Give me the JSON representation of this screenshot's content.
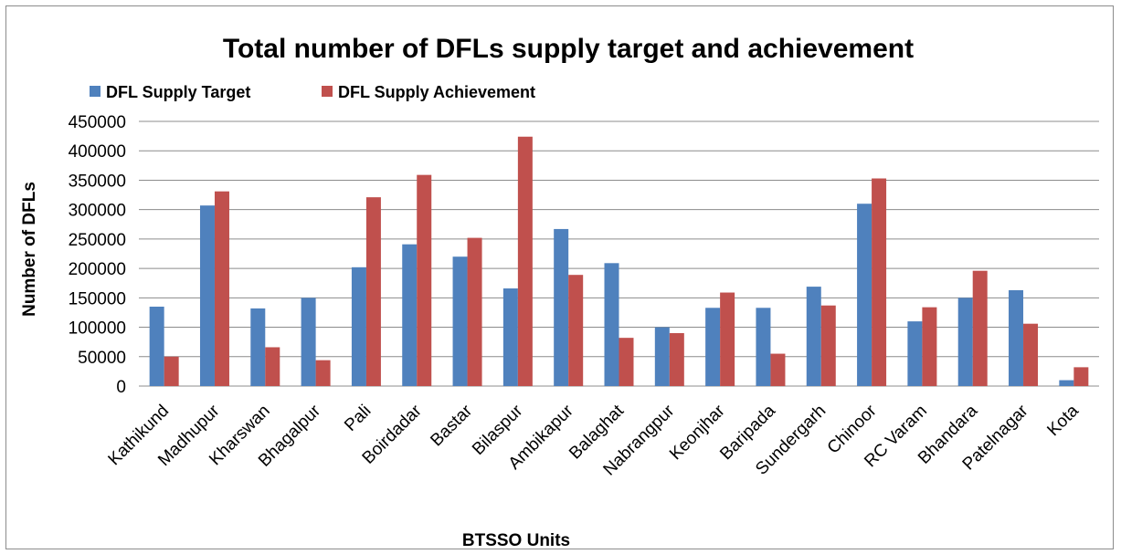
{
  "chart_data": {
    "type": "bar",
    "title": "Total number of DFLs supply target and achievement",
    "xlabel": "BTSSO Units",
    "ylabel": "Number of DFLs",
    "ylim": [
      0,
      450000
    ],
    "yticks": [
      0,
      50000,
      100000,
      150000,
      200000,
      250000,
      300000,
      350000,
      400000,
      450000
    ],
    "grid": true,
    "legend_position": "top-left",
    "categories": [
      "Kathikund",
      "Madhupur",
      "Kharswan",
      "Bhagalpur",
      "Pali",
      "Boirdadar",
      "Bastar",
      "Bilaspur",
      "Ambikapur",
      "Balaghat",
      "Nabrangpur",
      "Keonjhar",
      "Baripada",
      "Sundergarh",
      "Chinoor",
      "RC Varam",
      "Bhandara",
      "Patelnagar",
      "Kota"
    ],
    "series": [
      {
        "name": "DFL Supply Target",
        "color": "#4f81bd",
        "values": [
          135000,
          307000,
          132000,
          150000,
          202000,
          241000,
          220000,
          166000,
          267000,
          209000,
          100000,
          133000,
          133000,
          169000,
          310000,
          110000,
          150000,
          163000,
          10000
        ]
      },
      {
        "name": "DFL Supply Achievement",
        "color": "#c0504d",
        "values": [
          50000,
          331000,
          66000,
          44000,
          321000,
          359000,
          252000,
          424000,
          189000,
          82000,
          90000,
          159000,
          55000,
          137000,
          353000,
          134000,
          196000,
          106000,
          32000
        ]
      }
    ]
  }
}
